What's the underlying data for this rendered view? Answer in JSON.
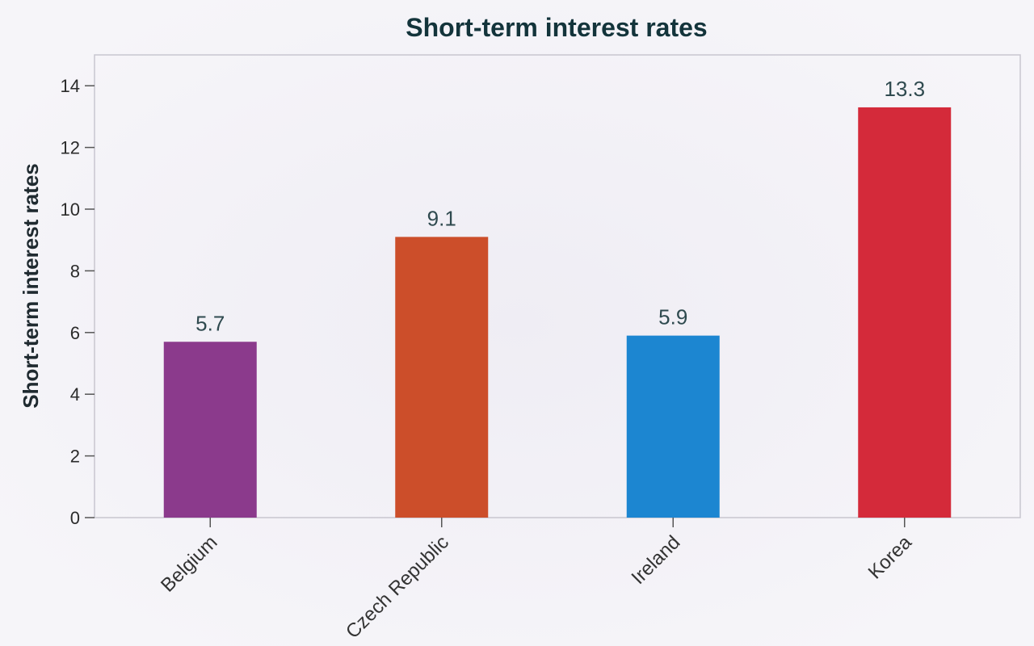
{
  "chart_data": {
    "type": "bar",
    "title": "Short-term interest rates",
    "ylabel": "Short-term interest rates",
    "xlabel": "",
    "categories": [
      "Belgium",
      "Czech Republic",
      "Ireland",
      "Korea"
    ],
    "values": [
      5.7,
      9.1,
      5.9,
      13.3
    ],
    "data_labels": [
      "5.7",
      "9.1",
      "5.9",
      "13.3"
    ],
    "colors": [
      "#8b3a8c",
      "#cc4e2a",
      "#1c86d1",
      "#d42a3a"
    ],
    "ylim": [
      0,
      15
    ],
    "yticks": [
      0,
      2,
      4,
      6,
      8,
      10,
      12,
      14
    ],
    "ytick_labels": [
      "0",
      "2",
      "4",
      "6",
      "8",
      "10",
      "12",
      "14"
    ],
    "grid": false,
    "legend": "none"
  }
}
